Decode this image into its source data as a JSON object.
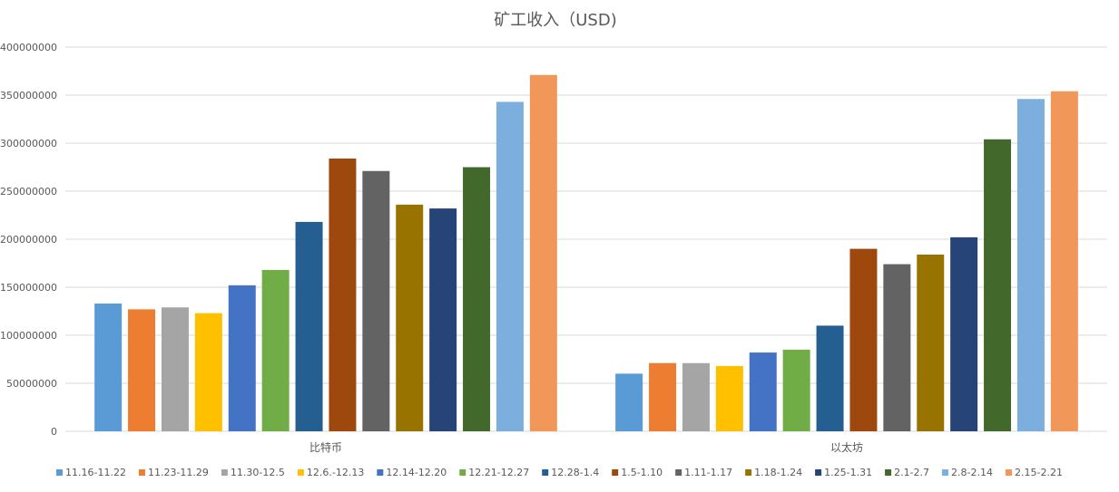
{
  "chart_data": {
    "type": "bar",
    "title": "矿工收入（USD)",
    "categories": [
      "比特币",
      "以太坊"
    ],
    "ylim": [
      0,
      400000000
    ],
    "yticks": [
      0,
      50000000,
      100000000,
      150000000,
      200000000,
      250000000,
      300000000,
      350000000,
      400000000
    ],
    "legend_position": "bottom",
    "grid": true,
    "series": [
      {
        "name": "11.16-11.22",
        "color": "#5b9bd5",
        "values": [
          133000000,
          60000000
        ]
      },
      {
        "name": "11.23-11.29",
        "color": "#ed7d31",
        "values": [
          127000000,
          71000000
        ]
      },
      {
        "name": "11.30-12.5",
        "color": "#a5a5a5",
        "values": [
          129000000,
          71000000
        ]
      },
      {
        "name": "12.6.-12.13",
        "color": "#ffc000",
        "values": [
          123000000,
          68000000
        ]
      },
      {
        "name": "12.14-12.20",
        "color": "#4472c4",
        "values": [
          152000000,
          82000000
        ]
      },
      {
        "name": "12.21-12.27",
        "color": "#70ad47",
        "values": [
          168000000,
          85000000
        ]
      },
      {
        "name": "12.28-1.4",
        "color": "#255e91",
        "values": [
          218000000,
          110000000
        ]
      },
      {
        "name": "1.5-1.10",
        "color": "#9e480e",
        "values": [
          284000000,
          190000000
        ]
      },
      {
        "name": "1.11-1.17",
        "color": "#636363",
        "values": [
          271000000,
          174000000
        ]
      },
      {
        "name": "1.18-1.24",
        "color": "#997300",
        "values": [
          236000000,
          184000000
        ]
      },
      {
        "name": "1.25-1.31",
        "color": "#264478",
        "values": [
          232000000,
          202000000
        ]
      },
      {
        "name": "2.1-2.7",
        "color": "#43682b",
        "values": [
          275000000,
          304000000
        ]
      },
      {
        "name": "2.8-2.14",
        "color": "#7cafdd",
        "values": [
          343000000,
          346000000
        ]
      },
      {
        "name": "2.15-2.21",
        "color": "#f1975a",
        "values": [
          371000000,
          354000000
        ]
      }
    ]
  }
}
